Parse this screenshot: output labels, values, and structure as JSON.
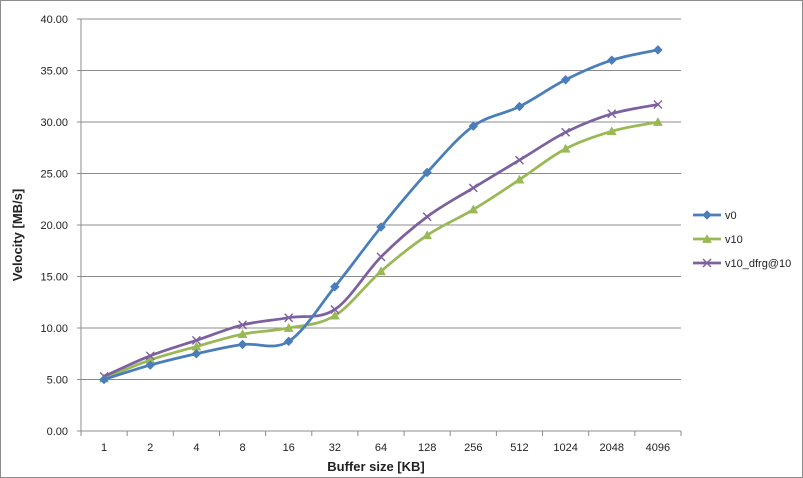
{
  "chart_data": {
    "type": "line",
    "categories": [
      "1",
      "2",
      "4",
      "8",
      "16",
      "32",
      "64",
      "128",
      "256",
      "512",
      "1024",
      "2048",
      "4096"
    ],
    "xlabel": "Buffer size [KB]",
    "ylabel": "Velocity [MB/s]",
    "ylim": [
      0,
      40
    ],
    "yticks": [
      "0.00",
      "5.00",
      "10.00",
      "15.00",
      "20.00",
      "25.00",
      "30.00",
      "35.00",
      "40.00"
    ],
    "grid": "horizontal",
    "legend_position": "right",
    "series": [
      {
        "name": "v0",
        "marker": "diamond",
        "color": "#4a7ebb",
        "values": [
          5.0,
          6.4,
          7.5,
          8.4,
          8.7,
          14.0,
          19.8,
          25.1,
          29.6,
          31.5,
          34.1,
          36.0,
          37.0
        ]
      },
      {
        "name": "v10",
        "marker": "triangle",
        "color": "#98b954",
        "values": [
          5.1,
          6.9,
          8.2,
          9.4,
          10.0,
          11.2,
          15.5,
          19.0,
          21.5,
          24.4,
          27.4,
          29.1,
          30.0
        ]
      },
      {
        "name": "v10_dfrg@10",
        "marker": "x",
        "color": "#7d60a0",
        "values": [
          5.3,
          7.3,
          8.8,
          10.3,
          11.0,
          11.8,
          16.9,
          20.8,
          23.6,
          26.3,
          29.0,
          30.8,
          31.7
        ]
      }
    ]
  }
}
